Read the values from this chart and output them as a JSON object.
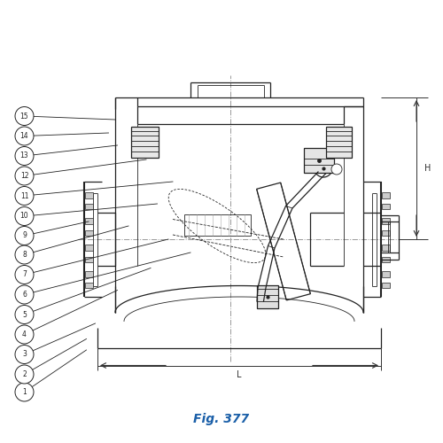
{
  "title": "Fig. 377",
  "title_color": "#1a5fa8",
  "title_fontsize": 10,
  "bg_color": "#ffffff",
  "line_color": "#222222",
  "cl_color": "#999999",
  "dim_color": "#333333",
  "callouts": [
    [
      1,
      0.055,
      0.115,
      0.195,
      0.21
    ],
    [
      2,
      0.055,
      0.155,
      0.195,
      0.235
    ],
    [
      3,
      0.055,
      0.2,
      0.215,
      0.27
    ],
    [
      4,
      0.055,
      0.245,
      0.265,
      0.345
    ],
    [
      5,
      0.055,
      0.29,
      0.34,
      0.395
    ],
    [
      6,
      0.055,
      0.335,
      0.43,
      0.43
    ],
    [
      7,
      0.055,
      0.38,
      0.38,
      0.46
    ],
    [
      8,
      0.055,
      0.425,
      0.29,
      0.49
    ],
    [
      9,
      0.055,
      0.468,
      0.2,
      0.5
    ],
    [
      10,
      0.055,
      0.512,
      0.355,
      0.54
    ],
    [
      11,
      0.055,
      0.558,
      0.39,
      0.59
    ],
    [
      12,
      0.055,
      0.603,
      0.33,
      0.64
    ],
    [
      13,
      0.055,
      0.648,
      0.265,
      0.672
    ],
    [
      14,
      0.055,
      0.693,
      0.245,
      0.7
    ],
    [
      15,
      0.055,
      0.738,
      0.26,
      0.73
    ]
  ]
}
